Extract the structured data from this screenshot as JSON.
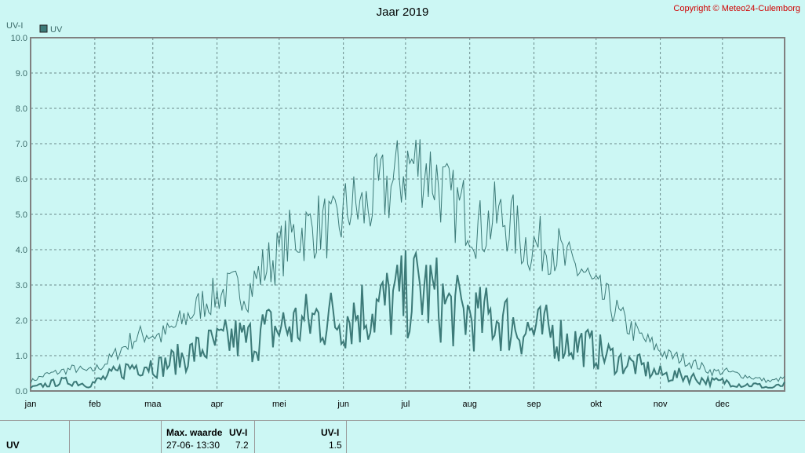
{
  "chart_data": {
    "type": "line",
    "title": "Jaar 2019",
    "ylabel": "UV-I",
    "ylim": [
      0,
      10
    ],
    "yticks": [
      "0.0",
      "1.0",
      "2.0",
      "3.0",
      "4.0",
      "5.0",
      "6.0",
      "7.0",
      "8.0",
      "9.0",
      "10.0"
    ],
    "months": [
      "jan",
      "feb",
      "maa",
      "apr",
      "mei",
      "jun",
      "jul",
      "aug",
      "sep",
      "okt",
      "nov",
      "dec"
    ],
    "grid": true,
    "legend": {
      "label": "UV",
      "placement": "top-left"
    },
    "series": [
      {
        "name": "UV",
        "role": "daily-max",
        "color": "#3c7a78",
        "x_days": [
          1,
          8,
          15,
          22,
          29,
          36,
          43,
          50,
          57,
          64,
          71,
          78,
          85,
          92,
          99,
          106,
          113,
          120,
          127,
          134,
          141,
          148,
          155,
          162,
          169,
          176,
          183,
          190,
          197,
          204,
          211,
          218,
          225,
          232,
          239,
          246,
          253,
          260,
          267,
          274,
          281,
          288,
          295,
          302,
          309,
          316,
          323,
          330,
          337,
          344,
          351,
          358,
          365
        ],
        "values": [
          0.3,
          0.5,
          0.6,
          0.7,
          0.6,
          0.8,
          1.2,
          1.6,
          1.8,
          1.7,
          2.0,
          2.4,
          2.8,
          3.0,
          3.2,
          3.1,
          3.8,
          4.2,
          4.8,
          5.0,
          5.2,
          5.0,
          5.8,
          5.6,
          6.2,
          6.4,
          7.0,
          7.1,
          6.6,
          5.8,
          5.6,
          5.0,
          5.4,
          5.3,
          4.6,
          4.5,
          4.6,
          3.9,
          3.8,
          3.1,
          2.7,
          2.1,
          1.7,
          1.4,
          1.1,
          1.0,
          0.8,
          0.6,
          0.6,
          0.5,
          0.4,
          0.3,
          0.4
        ]
      },
      {
        "name": "",
        "role": "daily-mean",
        "color": "#3c7a78",
        "x_days": [
          1,
          8,
          15,
          22,
          29,
          36,
          43,
          50,
          57,
          64,
          71,
          78,
          85,
          92,
          99,
          106,
          113,
          120,
          127,
          134,
          141,
          148,
          155,
          162,
          169,
          176,
          183,
          190,
          197,
          204,
          211,
          218,
          225,
          232,
          239,
          246,
          253,
          260,
          267,
          274,
          281,
          288,
          295,
          302,
          309,
          316,
          323,
          330,
          337,
          344,
          351,
          358,
          365
        ],
        "values": [
          0.1,
          0.2,
          0.3,
          0.3,
          0.2,
          0.4,
          0.6,
          0.8,
          0.9,
          0.8,
          1.0,
          1.2,
          1.4,
          1.5,
          1.7,
          1.6,
          1.9,
          2.0,
          2.1,
          2.2,
          2.4,
          2.3,
          2.5,
          2.6,
          2.7,
          2.9,
          3.1,
          3.3,
          3.0,
          2.6,
          2.5,
          2.3,
          2.4,
          2.2,
          2.0,
          1.9,
          1.9,
          1.6,
          1.5,
          1.3,
          1.1,
          0.9,
          0.8,
          0.6,
          0.5,
          0.5,
          0.4,
          0.3,
          0.3,
          0.2,
          0.2,
          0.1,
          0.2
        ]
      }
    ]
  },
  "copyright": "Copyright © Meteo24-Culemborg",
  "footer": {
    "row_label": "UV",
    "max_header": "Max. waarde",
    "unit_header_1": "UV-I",
    "max_date": "27-06-",
    "max_time": "13:30",
    "max_value": "7.2",
    "unit_header_2": "UV-I",
    "avg_value": "1.5"
  }
}
